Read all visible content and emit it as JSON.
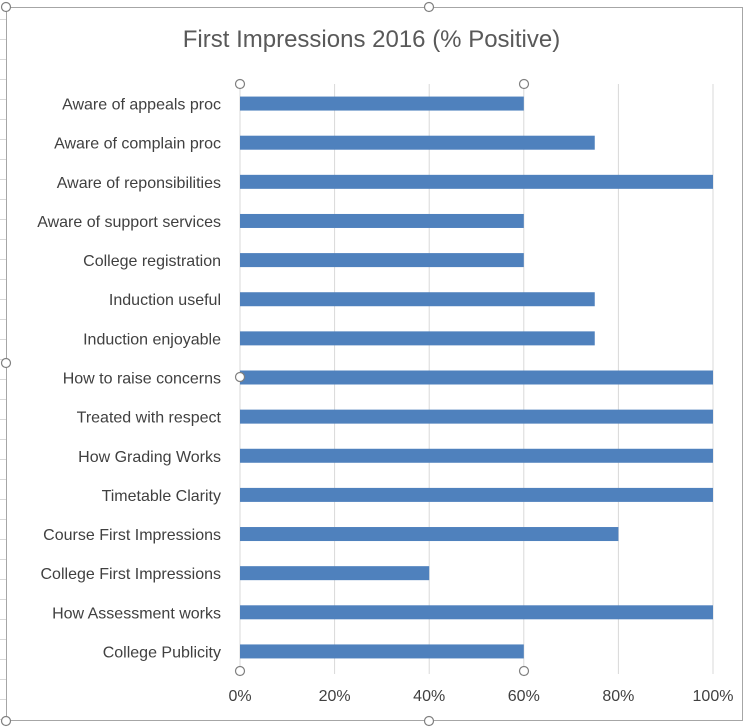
{
  "chart_data": {
    "type": "bar",
    "orientation": "horizontal",
    "title": "First Impressions 2016 (% Positive)",
    "categories": [
      "Aware of appeals proc",
      "Aware of complain proc",
      "Aware of reponsibilities",
      "Aware of support services",
      "College registration",
      "Induction useful",
      "Induction enjoyable",
      "How to raise concerns",
      "Treated with respect",
      "How Grading Works",
      "Timetable Clarity",
      "Course First Impressions",
      "College First Impressions",
      "How Assessment works",
      "College Publicity"
    ],
    "values": [
      60,
      75,
      100,
      60,
      60,
      75,
      75,
      100,
      100,
      100,
      100,
      80,
      40,
      100,
      60
    ],
    "xlim": [
      0,
      100
    ],
    "xticks": [
      "0%",
      "20%",
      "40%",
      "60%",
      "80%",
      "100%"
    ],
    "grid": "vertical",
    "bar_color": "#4f81bd",
    "grid_color": "#d9d9d9"
  }
}
